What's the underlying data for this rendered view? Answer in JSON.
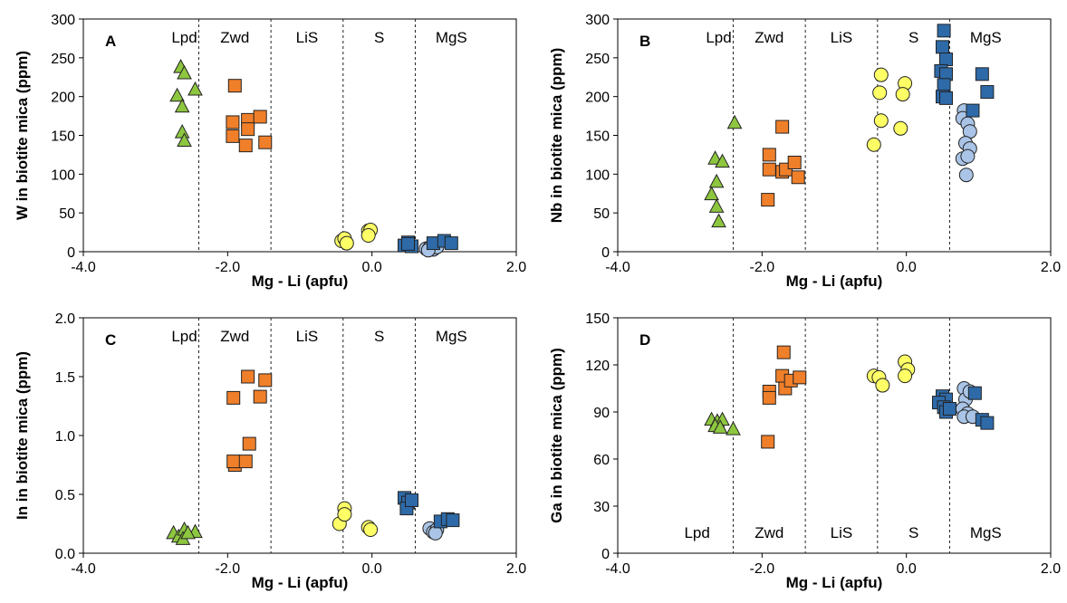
{
  "colors": {
    "Lpd": "#8dc63f",
    "Zwd": "#f07f2a",
    "S": "#ffff66",
    "MgS_square": "#2e6aa8",
    "MgS_circle": "#a9c4e6",
    "stroke": "#222222",
    "divider": "#222222"
  },
  "chart_data": [
    {
      "type": "scatter",
      "panel_label": "A",
      "xlabel": "Mg - Li (apfu)",
      "ylabel": "W in biotite mica (ppm)",
      "xlim": [
        -4,
        2
      ],
      "ylim": [
        0,
        300
      ],
      "xticks": [
        -4,
        -2,
        0,
        2
      ],
      "xtick_labels": [
        "-4.0",
        "-2.0",
        "0.0",
        "2.0"
      ],
      "yticks": [
        0,
        50,
        100,
        150,
        200,
        250,
        300
      ],
      "ytick_labels": [
        "0",
        "50",
        "100",
        "150",
        "200",
        "250",
        "300"
      ],
      "grid": false,
      "region_labels_at": "top",
      "regions": [
        {
          "name": "Lpd",
          "x": -2.6
        },
        {
          "name": "Zwd",
          "x": -1.9
        },
        {
          "name": "LiS",
          "x": -0.9
        },
        {
          "name": "S",
          "x": 0.1
        },
        {
          "name": "MgS",
          "x": 1.1
        }
      ],
      "dividers": [
        -2.4,
        -1.4,
        -0.4,
        0.6
      ],
      "series": [
        {
          "group": "Lpd",
          "marker": "triangle",
          "points": [
            [
              -2.65,
              238
            ],
            [
              -2.7,
              201
            ],
            [
              -2.6,
              230
            ],
            [
              -2.45,
              209
            ],
            [
              -2.63,
              187
            ],
            [
              -2.63,
              154
            ],
            [
              -2.6,
              143
            ]
          ]
        },
        {
          "group": "Zwd",
          "marker": "square",
          "points": [
            [
              -1.9,
              214
            ],
            [
              -1.93,
              167
            ],
            [
              -1.93,
              149
            ],
            [
              -1.72,
              170
            ],
            [
              -1.72,
              158
            ],
            [
              -1.55,
              174
            ],
            [
              -1.75,
              137
            ],
            [
              -1.48,
              141
            ]
          ]
        },
        {
          "group": "S",
          "marker": "circle",
          "points": [
            [
              -0.42,
              14
            ],
            [
              -0.38,
              17
            ],
            [
              -0.35,
              11
            ],
            [
              -0.05,
              27
            ],
            [
              -0.02,
              28
            ],
            [
              -0.05,
              21
            ]
          ]
        },
        {
          "group": "MgS_circle",
          "marker": "circle",
          "points": [
            [
              0.75,
              4
            ],
            [
              0.8,
              5
            ],
            [
              0.85,
              3
            ],
            [
              0.9,
              6
            ],
            [
              0.78,
              2
            ]
          ]
        },
        {
          "group": "MgS_square",
          "marker": "square",
          "points": [
            [
              0.45,
              8
            ],
            [
              0.5,
              12
            ],
            [
              0.55,
              7
            ],
            [
              0.5,
              10
            ],
            [
              0.85,
              11
            ],
            [
              1.0,
              14
            ],
            [
              1.1,
              11
            ]
          ]
        }
      ]
    },
    {
      "type": "scatter",
      "panel_label": "B",
      "xlabel": "Mg - Li (apfu)",
      "ylabel": "Nb in biotite mica (ppm)",
      "xlim": [
        -4,
        2
      ],
      "ylim": [
        0,
        300
      ],
      "xticks": [
        -4,
        -2,
        0,
        2
      ],
      "xtick_labels": [
        "-4.0",
        "-2.0",
        "0.0",
        "2.0"
      ],
      "yticks": [
        0,
        50,
        100,
        150,
        200,
        250,
        300
      ],
      "ytick_labels": [
        "0",
        "50",
        "100",
        "150",
        "200",
        "250",
        "300"
      ],
      "grid": false,
      "region_labels_at": "top",
      "regions": [
        {
          "name": "Lpd",
          "x": -2.6
        },
        {
          "name": "Zwd",
          "x": -1.9
        },
        {
          "name": "LiS",
          "x": -0.9
        },
        {
          "name": "S",
          "x": 0.1
        },
        {
          "name": "MgS",
          "x": 1.1
        }
      ],
      "dividers": [
        -2.4,
        -1.4,
        -0.4,
        0.6
      ],
      "series": [
        {
          "group": "Lpd",
          "marker": "triangle",
          "points": [
            [
              -2.38,
              166
            ],
            [
              -2.65,
              120
            ],
            [
              -2.55,
              116
            ],
            [
              -2.63,
              90
            ],
            [
              -2.7,
              74
            ],
            [
              -2.63,
              58
            ],
            [
              -2.6,
              39
            ]
          ]
        },
        {
          "group": "Zwd",
          "marker": "square",
          "points": [
            [
              -1.9,
              125
            ],
            [
              -1.9,
              106
            ],
            [
              -1.72,
              161
            ],
            [
              -1.72,
              103
            ],
            [
              -1.67,
              106
            ],
            [
              -1.55,
              115
            ],
            [
              -1.5,
              96
            ],
            [
              -1.92,
              67
            ]
          ]
        },
        {
          "group": "S",
          "marker": "circle",
          "points": [
            [
              -0.35,
              228
            ],
            [
              -0.37,
              205
            ],
            [
              -0.35,
              169
            ],
            [
              -0.45,
              138
            ],
            [
              -0.02,
              217
            ],
            [
              -0.05,
              203
            ],
            [
              -0.08,
              159
            ]
          ]
        },
        {
          "group": "MgS_circle",
          "marker": "circle",
          "points": [
            [
              0.8,
              182
            ],
            [
              0.78,
              172
            ],
            [
              0.85,
              165
            ],
            [
              0.88,
              155
            ],
            [
              0.82,
              140
            ],
            [
              0.88,
              133
            ],
            [
              0.78,
              120
            ],
            [
              0.85,
              123
            ],
            [
              0.83,
              99
            ]
          ]
        },
        {
          "group": "MgS_square",
          "marker": "square",
          "points": [
            [
              0.52,
              285
            ],
            [
              0.5,
              264
            ],
            [
              0.55,
              248
            ],
            [
              0.48,
              233
            ],
            [
              0.55,
              229
            ],
            [
              0.52,
              215
            ],
            [
              0.5,
              200
            ],
            [
              0.55,
              198
            ],
            [
              0.92,
              182
            ],
            [
              1.05,
              229
            ],
            [
              1.12,
              206
            ]
          ]
        }
      ]
    },
    {
      "type": "scatter",
      "panel_label": "C",
      "xlabel": "Mg - Li (apfu)",
      "ylabel": "In in biotite mica (ppm)",
      "xlim": [
        -4,
        2
      ],
      "ylim": [
        0,
        2
      ],
      "xticks": [
        -4,
        -2,
        0,
        2
      ],
      "xtick_labels": [
        "-4.0",
        "-2.0",
        "0.0",
        "2.0"
      ],
      "yticks": [
        0,
        0.5,
        1,
        1.5,
        2
      ],
      "ytick_labels": [
        "0.0",
        "0.5",
        "1.0",
        "1.5",
        "2.0"
      ],
      "grid": false,
      "region_labels_at": "top",
      "regions": [
        {
          "name": "Lpd",
          "x": -2.6
        },
        {
          "name": "Zwd",
          "x": -1.9
        },
        {
          "name": "LiS",
          "x": -0.9
        },
        {
          "name": "S",
          "x": 0.1
        },
        {
          "name": "MgS",
          "x": 1.1
        }
      ],
      "dividers": [
        -2.4,
        -1.4,
        -0.4,
        0.6
      ],
      "series": [
        {
          "group": "Lpd",
          "marker": "triangle",
          "points": [
            [
              -2.75,
              0.17
            ],
            [
              -2.68,
              0.14
            ],
            [
              -2.6,
              0.2
            ],
            [
              -2.62,
              0.12
            ],
            [
              -2.45,
              0.18
            ],
            [
              -2.55,
              0.17
            ]
          ]
        },
        {
          "group": "Zwd",
          "marker": "square",
          "points": [
            [
              -1.92,
              1.32
            ],
            [
              -1.72,
              1.5
            ],
            [
              -1.48,
              1.47
            ],
            [
              -1.55,
              1.33
            ],
            [
              -1.7,
              0.93
            ],
            [
              -1.9,
              0.75
            ],
            [
              -1.92,
              0.78
            ],
            [
              -1.75,
              0.78
            ]
          ]
        },
        {
          "group": "S",
          "marker": "circle",
          "points": [
            [
              -0.45,
              0.25
            ],
            [
              -0.38,
              0.38
            ],
            [
              -0.38,
              0.33
            ],
            [
              -0.05,
              0.22
            ],
            [
              -0.02,
              0.2
            ]
          ]
        },
        {
          "group": "MgS_circle",
          "marker": "circle",
          "points": [
            [
              0.8,
              0.21
            ],
            [
              0.85,
              0.18
            ],
            [
              0.9,
              0.2
            ],
            [
              0.88,
              0.17
            ]
          ]
        },
        {
          "group": "MgS_square",
          "marker": "square",
          "points": [
            [
              0.45,
              0.47
            ],
            [
              0.5,
              0.43
            ],
            [
              0.48,
              0.38
            ],
            [
              0.55,
              0.45
            ],
            [
              0.95,
              0.27
            ],
            [
              1.05,
              0.29
            ],
            [
              1.12,
              0.28
            ]
          ]
        }
      ]
    },
    {
      "type": "scatter",
      "panel_label": "D",
      "xlabel": "Mg - Li (apfu)",
      "ylabel": "Ga in biotite mica (ppm)",
      "xlim": [
        -4,
        2
      ],
      "ylim": [
        0,
        150
      ],
      "xticks": [
        -4,
        -2,
        0,
        2
      ],
      "xtick_labels": [
        "-4.0",
        "-2.0",
        "0.0",
        "2.0"
      ],
      "yticks": [
        0,
        30,
        60,
        90,
        120,
        150
      ],
      "ytick_labels": [
        "0",
        "30",
        "60",
        "90",
        "120",
        "150"
      ],
      "grid": false,
      "region_labels_at": "bottom",
      "regions": [
        {
          "name": "Lpd",
          "x": -2.9
        },
        {
          "name": "Zwd",
          "x": -1.9
        },
        {
          "name": "LiS",
          "x": -0.9
        },
        {
          "name": "S",
          "x": 0.1
        },
        {
          "name": "MgS",
          "x": 1.1
        }
      ],
      "dividers": [
        -2.4,
        -1.4,
        -0.4,
        0.6
      ],
      "series": [
        {
          "group": "Lpd",
          "marker": "triangle",
          "points": [
            [
              -2.7,
              85
            ],
            [
              -2.62,
              84
            ],
            [
              -2.55,
              85
            ],
            [
              -2.65,
              81
            ],
            [
              -2.58,
              80
            ],
            [
              -2.4,
              79
            ]
          ]
        },
        {
          "group": "Zwd",
          "marker": "square",
          "points": [
            [
              -1.7,
              128
            ],
            [
              -1.9,
              103
            ],
            [
              -1.9,
              99
            ],
            [
              -1.72,
              113
            ],
            [
              -1.68,
              105
            ],
            [
              -1.6,
              110
            ],
            [
              -1.48,
              112
            ],
            [
              -1.92,
              71
            ]
          ]
        },
        {
          "group": "S",
          "marker": "circle",
          "points": [
            [
              -0.45,
              113
            ],
            [
              -0.38,
              112
            ],
            [
              -0.33,
              107
            ],
            [
              -0.02,
              122
            ],
            [
              0.02,
              117
            ],
            [
              -0.02,
              113
            ]
          ]
        },
        {
          "group": "MgS_circle",
          "marker": "circle",
          "points": [
            [
              0.8,
              105
            ],
            [
              0.82,
              98
            ],
            [
              0.78,
              92
            ],
            [
              0.85,
              89
            ],
            [
              0.8,
              87
            ],
            [
              0.92,
              87
            ],
            [
              0.88,
              103
            ]
          ]
        },
        {
          "group": "MgS_square",
          "marker": "square",
          "points": [
            [
              0.5,
              100
            ],
            [
              0.55,
              98
            ],
            [
              0.45,
              96
            ],
            [
              0.52,
              93
            ],
            [
              0.55,
              90
            ],
            [
              0.6,
              92
            ],
            [
              0.95,
              102
            ],
            [
              1.05,
              85
            ],
            [
              1.12,
              83
            ]
          ]
        }
      ]
    }
  ]
}
